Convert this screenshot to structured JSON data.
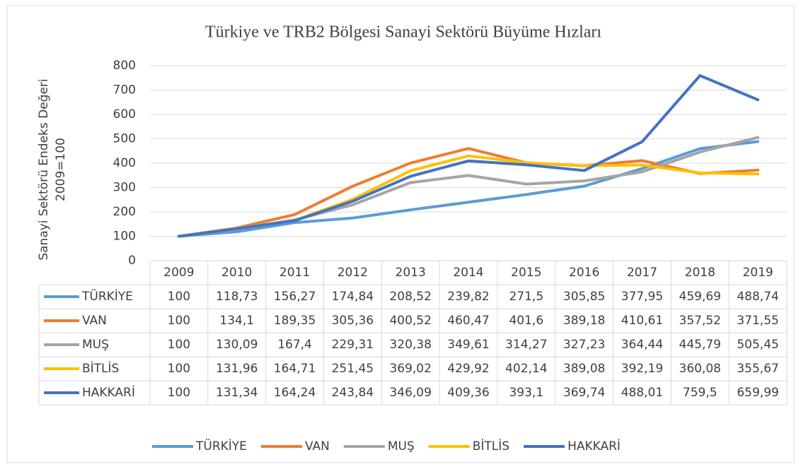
{
  "chart_data": {
    "type": "line",
    "title": "Türkiye ve TRB2 Bölgesi Sanayi Sektörü Büyüme Hızları",
    "y_label": [
      "Sanayi Sektörü Endeks Değeri",
      "2009=100"
    ],
    "categories": [
      "2009",
      "2010",
      "2011",
      "2012",
      "2013",
      "2014",
      "2015",
      "2016",
      "2017",
      "2018",
      "2019"
    ],
    "series": [
      {
        "name": "TÜRKİYE",
        "color": "#5B9BD5",
        "values": [
          100,
          118.73,
          156.27,
          174.84,
          208.52,
          239.82,
          271.5,
          305.85,
          377.95,
          459.69,
          488.74
        ],
        "value_labels": [
          "100",
          "118,73",
          "156,27",
          "174,84",
          "208,52",
          "239,82",
          "271,5",
          "305,85",
          "377,95",
          "459,69",
          "488,74"
        ]
      },
      {
        "name": "VAN",
        "color": "#ED7D31",
        "values": [
          100,
          134.1,
          189.35,
          305.36,
          400.52,
          460.47,
          401.6,
          389.18,
          410.61,
          357.52,
          371.55
        ],
        "value_labels": [
          "100",
          "134,1",
          "189,35",
          "305,36",
          "400,52",
          "460,47",
          "401,6",
          "389,18",
          "410,61",
          "357,52",
          "371,55"
        ]
      },
      {
        "name": "MUŞ",
        "color": "#A5A5A5",
        "values": [
          100,
          130.09,
          167.4,
          229.31,
          320.38,
          349.61,
          314.27,
          327.23,
          364.44,
          445.79,
          505.45
        ],
        "value_labels": [
          "100",
          "130,09",
          "167,4",
          "229,31",
          "320,38",
          "349,61",
          "314,27",
          "327,23",
          "364,44",
          "445,79",
          "505,45"
        ]
      },
      {
        "name": "BİTLİS",
        "color": "#FFC000",
        "values": [
          100,
          131.96,
          164.71,
          251.45,
          369.02,
          429.92,
          402.14,
          389.08,
          392.19,
          360.08,
          355.67
        ],
        "value_labels": [
          "100",
          "131,96",
          "164,71",
          "251,45",
          "369,02",
          "429,92",
          "402,14",
          "389,08",
          "392,19",
          "360,08",
          "355,67"
        ]
      },
      {
        "name": "HAKKARİ",
        "color": "#4472C4",
        "values": [
          100,
          131.34,
          164.24,
          243.84,
          346.09,
          409.36,
          393.1,
          369.74,
          488.01,
          759.5,
          659.99
        ],
        "value_labels": [
          "100",
          "131,34",
          "164,24",
          "243,84",
          "346,09",
          "409,36",
          "393,1",
          "369,74",
          "488,01",
          "759,5",
          "659,99"
        ]
      }
    ],
    "ylim": [
      0,
      800
    ],
    "yticks": [
      0,
      100,
      200,
      300,
      400,
      500,
      600,
      700,
      800
    ],
    "grid": true,
    "legend": "bottom"
  }
}
